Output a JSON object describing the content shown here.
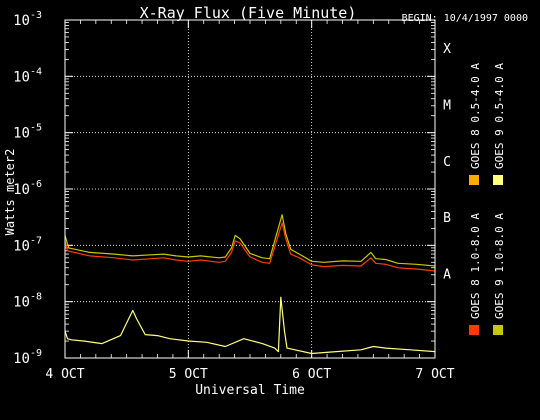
{
  "chart_data": {
    "type": "line",
    "title": "X-Ray Flux (Five Minute)",
    "begin_label": "BEGIN: 10/4/1997 0000",
    "xlabel": "Universal Time",
    "ylabel": "Watts meter2",
    "x_ticks": [
      "4 OCT",
      "5 OCT",
      "6 OCT",
      "7 OCT"
    ],
    "xlim": [
      0,
      3
    ],
    "ylim_exponents": [
      -9,
      -3
    ],
    "y_scale": "log",
    "y_tick_exponents": [
      "-9",
      "-8",
      "-7",
      "-6",
      "-5",
      "-4",
      "-3"
    ],
    "y_tick_base": "10",
    "grid": "dotted horizontal at each decade; dotted vertical at day boundaries",
    "class_labels": [
      {
        "label": "A",
        "exp": -8
      },
      {
        "label": "B",
        "exp": -7
      },
      {
        "label": "C",
        "exp": -6
      },
      {
        "label": "M",
        "exp": -5
      },
      {
        "label": "X",
        "exp": -4
      }
    ],
    "legend_position": "right, rotated vertical",
    "series": [
      {
        "name": "GOES 8 1.0-8.0 A",
        "color": "#ff3c00",
        "points": [
          [
            0.0,
            1.2e-07
          ],
          [
            0.02,
            8e-08
          ],
          [
            0.2,
            6.5e-08
          ],
          [
            0.4,
            6e-08
          ],
          [
            0.55,
            5.5e-08
          ],
          [
            0.7,
            5.8e-08
          ],
          [
            0.8,
            6e-08
          ],
          [
            0.9,
            5.5e-08
          ],
          [
            1.0,
            5.2e-08
          ],
          [
            1.1,
            5.5e-08
          ],
          [
            1.25,
            5e-08
          ],
          [
            1.3,
            5.2e-08
          ],
          [
            1.35,
            7.5e-08
          ],
          [
            1.38,
            1.2e-07
          ],
          [
            1.42,
            1.1e-07
          ],
          [
            1.5,
            6.2e-08
          ],
          [
            1.6,
            5e-08
          ],
          [
            1.66,
            4.8e-08
          ],
          [
            1.76,
            2.5e-07
          ],
          [
            1.79,
            1.3e-07
          ],
          [
            1.83,
            7e-08
          ],
          [
            1.9,
            6e-08
          ],
          [
            2.0,
            4.5e-08
          ],
          [
            2.1,
            4.2e-08
          ],
          [
            2.25,
            4.4e-08
          ],
          [
            2.4,
            4.3e-08
          ],
          [
            2.48,
            6e-08
          ],
          [
            2.52,
            4.8e-08
          ],
          [
            2.6,
            4.6e-08
          ],
          [
            2.7,
            4e-08
          ],
          [
            2.85,
            3.8e-08
          ],
          [
            3.0,
            3.5e-08
          ]
        ]
      },
      {
        "name": "GOES 8 0.5-4.0 A",
        "color": "#ffaa00",
        "points": []
      },
      {
        "name": "GOES 9 1.0-8.0 A",
        "color": "#c8c800",
        "points": [
          [
            0.0,
            1.5e-07
          ],
          [
            0.03,
            9e-08
          ],
          [
            0.2,
            7.5e-08
          ],
          [
            0.4,
            7e-08
          ],
          [
            0.55,
            6.5e-08
          ],
          [
            0.7,
            6.8e-08
          ],
          [
            0.8,
            7e-08
          ],
          [
            0.9,
            6.5e-08
          ],
          [
            1.0,
            6.2e-08
          ],
          [
            1.1,
            6.5e-08
          ],
          [
            1.25,
            6e-08
          ],
          [
            1.3,
            6.2e-08
          ],
          [
            1.35,
            9e-08
          ],
          [
            1.38,
            1.5e-07
          ],
          [
            1.42,
            1.3e-07
          ],
          [
            1.5,
            7.2e-08
          ],
          [
            1.6,
            6e-08
          ],
          [
            1.66,
            5.8e-08
          ],
          [
            1.76,
            3.5e-07
          ],
          [
            1.79,
            1.6e-07
          ],
          [
            1.83,
            8.5e-08
          ],
          [
            1.9,
            7e-08
          ],
          [
            2.0,
            5.2e-08
          ],
          [
            2.1,
            5e-08
          ],
          [
            2.25,
            5.3e-08
          ],
          [
            2.4,
            5.2e-08
          ],
          [
            2.48,
            7.5e-08
          ],
          [
            2.52,
            5.8e-08
          ],
          [
            2.6,
            5.6e-08
          ],
          [
            2.7,
            4.8e-08
          ],
          [
            2.85,
            4.6e-08
          ],
          [
            3.0,
            4.3e-08
          ]
        ]
      },
      {
        "name": "GOES 9 0.5-4.0 A",
        "color": "#ffff80",
        "points": [
          [
            0.0,
            3e-09
          ],
          [
            0.02,
            2.2e-09
          ],
          [
            0.05,
            2.1e-09
          ],
          [
            0.15,
            2e-09
          ],
          [
            0.3,
            1.8e-09
          ],
          [
            0.45,
            2.5e-09
          ],
          [
            0.5,
            4.2e-09
          ],
          [
            0.55,
            7e-09
          ],
          [
            0.58,
            5e-09
          ],
          [
            0.65,
            2.6e-09
          ],
          [
            0.75,
            2.5e-09
          ],
          [
            0.85,
            2.2e-09
          ],
          [
            1.0,
            2e-09
          ],
          [
            1.15,
            1.9e-09
          ],
          [
            1.3,
            1.6e-09
          ],
          [
            1.45,
            2.2e-09
          ],
          [
            1.6,
            1.8e-09
          ],
          [
            1.7,
            1.5e-09
          ],
          [
            1.73,
            1.3e-09
          ],
          [
            1.75,
            1.2e-08
          ],
          [
            1.78,
            3e-09
          ],
          [
            1.8,
            1.5e-09
          ],
          [
            2.0,
            1.2e-09
          ],
          [
            2.2,
            1.3e-09
          ],
          [
            2.4,
            1.4e-09
          ],
          [
            2.5,
            1.6e-09
          ],
          [
            2.6,
            1.5e-09
          ],
          [
            2.8,
            1.4e-09
          ],
          [
            3.0,
            1.3e-09
          ]
        ]
      }
    ]
  }
}
